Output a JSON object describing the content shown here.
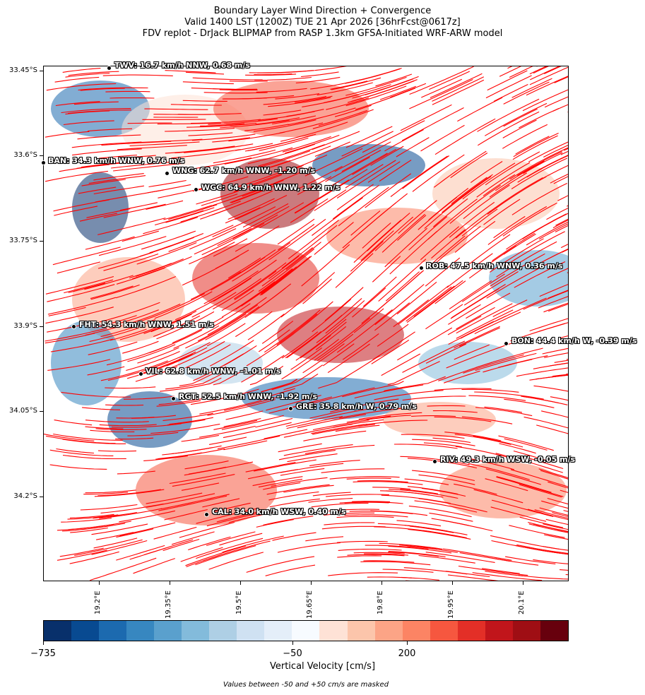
{
  "title": {
    "line1": "Boundary Layer Wind Direction + Convergence",
    "line2": "Valid 1400 LST (1200Z) TUE 21 Apr 2026 [36hrFcst@0617z]",
    "line3": "FDV replot - DrJack BLIPMAP from RASP 1.3km GFSA-Initiated WRF-ARW model"
  },
  "axes": {
    "lat_ticks": [
      "33.45°S",
      "33.6°S",
      "33.75°S",
      "33.9°S",
      "34.05°S",
      "34.2°S"
    ],
    "lon_ticks": [
      "19.2°E",
      "19.35°E",
      "19.5°E",
      "19.65°E",
      "19.8°E",
      "19.95°E",
      "20.1°E"
    ]
  },
  "colors": {
    "wind": "#ff0000",
    "colorbar": [
      "#08306b",
      "#084a91",
      "#1c6aaf",
      "#3787c0",
      "#5aa0cd",
      "#83bbdb",
      "#aecfe5",
      "#cfe1f2",
      "#e4eef9",
      "#f7fbff",
      "#fee2d6",
      "#fcc5ab",
      "#fca486",
      "#fc8464",
      "#f6573f",
      "#e32f27",
      "#c1151b",
      "#9f0e14",
      "#67000d"
    ]
  },
  "stations": [
    {
      "id": "twv",
      "label": "TWV: 16.7 km/h NNW, 0.68 m/s"
    },
    {
      "id": "ban",
      "label": "BAN: 34.3 km/h WNW, 0.76 m/s"
    },
    {
      "id": "wng",
      "label": "WNG: 62.7 km/h WNW, -1.20 m/s"
    },
    {
      "id": "wgc",
      "label": "WGC: 64.9 km/h WNW, 1.22 m/s"
    },
    {
      "id": "rob",
      "label": "ROB: 47.5 km/h WNW, 0.36 m/s"
    },
    {
      "id": "fht",
      "label": "FHT: 54.3 km/h WNW, 1.51 m/s"
    },
    {
      "id": "bon",
      "label": "BON: 44.4 km/h W, -0.39 m/s"
    },
    {
      "id": "vil",
      "label": "VIL: 62.8 km/h WNW, -1.01 m/s"
    },
    {
      "id": "rgt",
      "label": "RGT: 52.5 km/h WNW, -1.92 m/s"
    },
    {
      "id": "gre",
      "label": "GRE: 35.8 km/h W, 0.79 m/s"
    },
    {
      "id": "riv",
      "label": "RIV: 49.3 km/h WSW, -0.05 m/s"
    },
    {
      "id": "cal",
      "label": "CAL: 34.0 km/h WSW, 0.40 m/s"
    }
  ],
  "colorbar": {
    "ticks": [
      "−735",
      "−50",
      "200"
    ],
    "label": "Vertical Velocity [cm/s]"
  },
  "note": "Values between -50 and +50 cm/s are masked"
}
